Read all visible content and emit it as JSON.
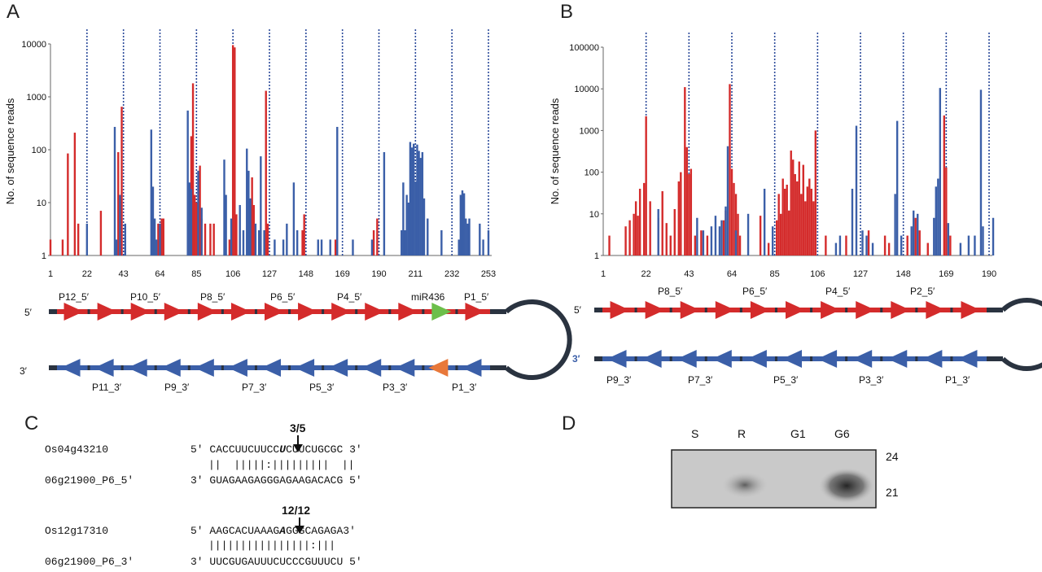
{
  "colors": {
    "red": "#d42b2b",
    "blue": "#3b5fa8",
    "green": "#6cbf4a",
    "orange": "#e8783a",
    "stem": "#2a3340"
  },
  "panels": {
    "a": "A",
    "b": "B",
    "c": "C",
    "d": "D"
  },
  "chart_data": [
    {
      "type": "bar",
      "ylabel": "No. of sequence reads",
      "yscale": "log",
      "ylim": [
        1,
        10000
      ],
      "yticks": [
        "1",
        "10",
        "100",
        "1000",
        "10000"
      ],
      "xticks": [
        "1",
        "22",
        "43",
        "64",
        "85",
        "106",
        "127",
        "148",
        "169",
        "190",
        "211",
        "232",
        "253"
      ],
      "xlim": [
        1,
        253
      ],
      "phase_lines": [
        22,
        43,
        64,
        85,
        106,
        127,
        148,
        169,
        190,
        211,
        232,
        253
      ],
      "series": [
        {
          "color": "red",
          "bars": [
            [
              1,
              2
            ],
            [
              8,
              2
            ],
            [
              11,
              85
            ],
            [
              15,
              210
            ],
            [
              17,
              4
            ],
            [
              30,
              7
            ],
            [
              40,
              90
            ],
            [
              42,
              650
            ],
            [
              63,
              4
            ],
            [
              65,
              5
            ],
            [
              66,
              5
            ],
            [
              81,
              4
            ],
            [
              82,
              180
            ],
            [
              83,
              1800
            ],
            [
              84,
              14
            ],
            [
              85,
              10
            ],
            [
              87,
              50
            ],
            [
              88,
              5
            ],
            [
              90,
              4
            ],
            [
              93,
              4
            ],
            [
              95,
              4
            ],
            [
              104,
              2
            ],
            [
              106,
              9500
            ],
            [
              107,
              8600
            ],
            [
              108,
              6
            ],
            [
              115,
              4
            ],
            [
              117,
              30
            ],
            [
              118,
              9
            ],
            [
              125,
              1300
            ],
            [
              126,
              4
            ],
            [
              146,
              3
            ],
            [
              147,
              6
            ],
            [
              165,
              2
            ],
            [
              187,
              3
            ],
            [
              189,
              5
            ]
          ]
        },
        {
          "color": "blue",
          "bars": [
            [
              22,
              4
            ],
            [
              38,
              270
            ],
            [
              39,
              2
            ],
            [
              41,
              14
            ],
            [
              44,
              4
            ],
            [
              59,
              240
            ],
            [
              60,
              20
            ],
            [
              61,
              5
            ],
            [
              62,
              2
            ],
            [
              64,
              4
            ],
            [
              80,
              550
            ],
            [
              81,
              24
            ],
            [
              82,
              18
            ],
            [
              86,
              40
            ],
            [
              88,
              8
            ],
            [
              101,
              65
            ],
            [
              102,
              14
            ],
            [
              105,
              5
            ],
            [
              110,
              9
            ],
            [
              112,
              3
            ],
            [
              114,
              105
            ],
            [
              115,
              40
            ],
            [
              116,
              12
            ],
            [
              119,
              4
            ],
            [
              121,
              3
            ],
            [
              122,
              75
            ],
            [
              124,
              3
            ],
            [
              130,
              2
            ],
            [
              135,
              2
            ],
            [
              137,
              4
            ],
            [
              141,
              24
            ],
            [
              143,
              3
            ],
            [
              155,
              2
            ],
            [
              157,
              2
            ],
            [
              162,
              2
            ],
            [
              166,
              270
            ],
            [
              175,
              2
            ],
            [
              186,
              2
            ],
            [
              193,
              90
            ],
            [
              203,
              3
            ],
            [
              204,
              24
            ],
            [
              205,
              3
            ],
            [
              206,
              14
            ],
            [
              207,
              10
            ],
            [
              208,
              140
            ],
            [
              209,
              110
            ],
            [
              210,
              130
            ],
            [
              211,
              25
            ],
            [
              212,
              125
            ],
            [
              213,
              95
            ],
            [
              214,
              70
            ],
            [
              215,
              90
            ],
            [
              216,
              12
            ],
            [
              218,
              5
            ],
            [
              226,
              3
            ],
            [
              236,
              2
            ],
            [
              237,
              14
            ],
            [
              238,
              17
            ],
            [
              239,
              15
            ],
            [
              240,
              5
            ],
            [
              241,
              4
            ],
            [
              242,
              5
            ],
            [
              248,
              4
            ],
            [
              250,
              2
            ],
            [
              253,
              3
            ]
          ]
        }
      ]
    },
    {
      "type": "bar",
      "ylabel": "No. of sequence reads",
      "yscale": "log",
      "ylim": [
        1,
        100000
      ],
      "yticks": [
        "1",
        "10",
        "100",
        "1000",
        "10000",
        "100000"
      ],
      "xticks": [
        "1",
        "22",
        "43",
        "64",
        "85",
        "106",
        "127",
        "148",
        "169",
        "190"
      ],
      "xlim": [
        1,
        190
      ],
      "phase_lines": [
        22,
        43,
        64,
        85,
        106,
        127,
        148,
        169,
        190
      ],
      "series": [
        {
          "color": "red",
          "bars": [
            [
              4,
              3
            ],
            [
              12,
              5
            ],
            [
              14,
              7
            ],
            [
              16,
              10
            ],
            [
              17,
              20
            ],
            [
              18,
              9
            ],
            [
              19,
              40
            ],
            [
              21,
              55
            ],
            [
              22,
              2200
            ],
            [
              24,
              20
            ],
            [
              28,
              8
            ],
            [
              30,
              35
            ],
            [
              32,
              6
            ],
            [
              34,
              3
            ],
            [
              36,
              13
            ],
            [
              38,
              60
            ],
            [
              39,
              100
            ],
            [
              41,
              11000
            ],
            [
              42,
              400
            ],
            [
              43,
              90
            ],
            [
              44,
              120
            ],
            [
              46,
              3
            ],
            [
              49,
              4
            ],
            [
              52,
              3
            ],
            [
              60,
              7
            ],
            [
              61,
              12
            ],
            [
              63,
              13000
            ],
            [
              64,
              120
            ],
            [
              65,
              55
            ],
            [
              66,
              30
            ],
            [
              67,
              10
            ],
            [
              68,
              3
            ],
            [
              78,
              9
            ],
            [
              82,
              2
            ],
            [
              86,
              7
            ],
            [
              87,
              30
            ],
            [
              88,
              10
            ],
            [
              89,
              70
            ],
            [
              90,
              40
            ],
            [
              91,
              50
            ],
            [
              92,
              12
            ],
            [
              93,
              330
            ],
            [
              94,
              200
            ],
            [
              95,
              90
            ],
            [
              96,
              60
            ],
            [
              97,
              180
            ],
            [
              98,
              30
            ],
            [
              99,
              150
            ],
            [
              100,
              20
            ],
            [
              101,
              45
            ],
            [
              102,
              70
            ],
            [
              103,
              40
            ],
            [
              104,
              20
            ],
            [
              105,
              1000
            ],
            [
              110,
              3
            ],
            [
              120,
              3
            ],
            [
              131,
              4
            ],
            [
              139,
              3
            ],
            [
              141,
              2
            ],
            [
              150,
              3
            ],
            [
              154,
              8
            ],
            [
              156,
              4
            ],
            [
              160,
              2
            ],
            [
              168,
              2300
            ],
            [
              169,
              130
            ],
            [
              171,
              3
            ]
          ]
        },
        {
          "color": "blue",
          "bars": [
            [
              28,
              13
            ],
            [
              47,
              8
            ],
            [
              50,
              4
            ],
            [
              54,
              5
            ],
            [
              56,
              9
            ],
            [
              58,
              5
            ],
            [
              59,
              7
            ],
            [
              61,
              15
            ],
            [
              62,
              420
            ],
            [
              66,
              4
            ],
            [
              72,
              10
            ],
            [
              80,
              40
            ],
            [
              84,
              5
            ],
            [
              115,
              2
            ],
            [
              117,
              3
            ],
            [
              123,
              40
            ],
            [
              125,
              1300
            ],
            [
              128,
              4
            ],
            [
              130,
              3
            ],
            [
              133,
              2
            ],
            [
              144,
              30
            ],
            [
              145,
              1700
            ],
            [
              147,
              3
            ],
            [
              152,
              5
            ],
            [
              153,
              12
            ],
            [
              155,
              10
            ],
            [
              163,
              8
            ],
            [
              164,
              45
            ],
            [
              165,
              70
            ],
            [
              166,
              10500
            ],
            [
              170,
              6
            ],
            [
              176,
              2
            ],
            [
              180,
              3
            ],
            [
              183,
              3
            ],
            [
              186,
              9500
            ],
            [
              187,
              5
            ],
            [
              192,
              8
            ]
          ]
        }
      ]
    }
  ],
  "diagram_a": {
    "top_labels": [
      "P12_5′",
      "P10_5′",
      "P8_5′",
      "P6_5′",
      "P4_5′",
      "miR436",
      "P1_5′"
    ],
    "bottom_labels": [
      "P11_3′",
      "P9_3′",
      "P7_3′",
      "P5_3′",
      "P3_3′",
      "P1_3′"
    ],
    "end5": "5′",
    "end3": "3′"
  },
  "diagram_b": {
    "top_labels": [
      "P8_5′",
      "P6_5′",
      "P4_5′",
      "P2_5′"
    ],
    "bottom_labels": [
      "P9_3′",
      "P7_3′",
      "P5_3′",
      "P3_3′",
      "P1_3′"
    ],
    "end5": "5′",
    "end3": "3′"
  },
  "panel_c": {
    "pair1": {
      "count": "3/5",
      "target_name": "Os04g43210",
      "target_end5": "5′",
      "target_pre": "CACCUUCUUCC",
      "target_cut": "U",
      "target_post": "CUUCUGCGC",
      "target_end3": "3′",
      "match": "||  |||||:|||||||||  ||",
      "srna_name": "06g21900_P6_5′",
      "srna_end3": "3′",
      "srna_seq": "GUAGAAGAGGGAGAAGACACG",
      "srna_end5": "5′"
    },
    "pair2": {
      "count": "12/12",
      "target_name": "Os12g17310",
      "target_end5": "5′",
      "target_pre": "AAGCACUAAAG",
      "target_cut": "A",
      "target_post": "GGGCAGAGA3′",
      "match": "||||||||||||||||:|||",
      "srna_name": "06g21900_P6_3′",
      "srna_end3": "3′",
      "srna_seq": "UUCGUGAUUUCUCCCGUUUCU",
      "srna_end5": "5′"
    }
  },
  "panel_d": {
    "lanes": [
      "S",
      "R",
      "G1",
      "G6"
    ],
    "sizes": [
      "24",
      "21"
    ]
  }
}
